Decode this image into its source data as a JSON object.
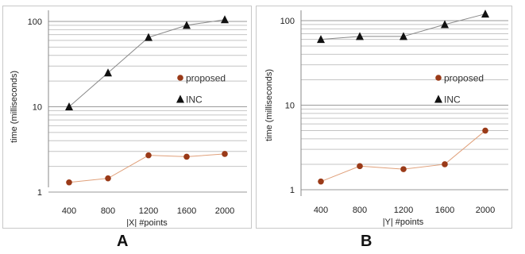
{
  "chart_data": [
    {
      "type": "line",
      "panel_label": "A",
      "xlabel": "|X| #points",
      "ylabel": "time (milliseconds)",
      "x_scale": "category",
      "y_scale": "log",
      "ylim": [
        1,
        100
      ],
      "categories": [
        "400",
        "800",
        "1200",
        "1600",
        "2000"
      ],
      "y_tick_labels": [
        "1",
        "10",
        "100"
      ],
      "grid": true,
      "legend_position": "right",
      "series": [
        {
          "name": "proposed",
          "marker": "circle",
          "color": "#9a3a18",
          "line_color": "#e0a07a",
          "values": [
            1.3,
            1.45,
            2.7,
            2.6,
            2.8
          ]
        },
        {
          "name": "INC",
          "marker": "triangle",
          "color": "#111111",
          "line_color": "#8a8a8a",
          "values": [
            10,
            25,
            65,
            90,
            105
          ]
        }
      ]
    },
    {
      "type": "line",
      "panel_label": "B",
      "xlabel": "|Y| #points",
      "ylabel": "time (milliseconds)",
      "x_scale": "category",
      "y_scale": "log",
      "ylim": [
        1,
        100
      ],
      "categories": [
        "400",
        "800",
        "1200",
        "1600",
        "2000"
      ],
      "y_tick_labels": [
        "1",
        "10",
        "100"
      ],
      "grid": true,
      "legend_position": "right",
      "series": [
        {
          "name": "proposed",
          "marker": "circle",
          "color": "#9a3a18",
          "line_color": "#e0a07a",
          "values": [
            1.25,
            1.9,
            1.75,
            2.0,
            5.0
          ]
        },
        {
          "name": "INC",
          "marker": "triangle",
          "color": "#111111",
          "line_color": "#8a8a8a",
          "values": [
            60,
            65,
            65,
            90,
            120
          ]
        }
      ]
    }
  ]
}
